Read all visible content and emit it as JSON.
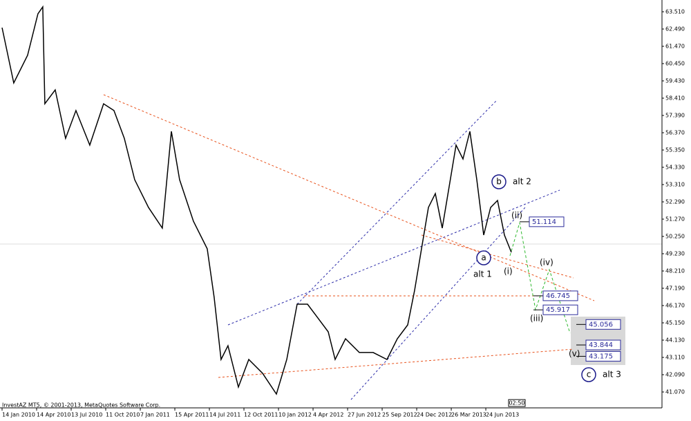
{
  "chart_data": {
    "type": "line",
    "footer": "InvestAZ MT5, © 2001-2013, MetaQuotes Software Corp.",
    "time_label": "02:50",
    "x": [
      0,
      4.4,
      9.6,
      13.5,
      15.3,
      16.1,
      20.0,
      23.9,
      27.8,
      33.0,
      38.2,
      42.1,
      46.0,
      49.9,
      55.1,
      60.3,
      63.7,
      66.8,
      72.0,
      77.2,
      79.8,
      82.4,
      85.0,
      88.9,
      92.8,
      98.0,
      103.2,
      107.1,
      111.0,
      114.9,
      118.8,
      122.7,
      125.3,
      129.2,
      134.4,
      139.6,
      144.8,
      148.7,
      152.6,
      155.2,
      157.8,
      160.4,
      163.0,
      165.6,
      168.2,
      170.8,
      173.4,
      176.0,
      178.6,
      181.2,
      183.8,
      186.4,
      189.0,
      191.6
    ],
    "series": [
      {
        "color": "#000000",
        "values": [
          62.57,
          59.31,
          60.94,
          63.39,
          63.8,
          58.08,
          58.9,
          56.04,
          57.68,
          55.64,
          58.08,
          57.68,
          56.04,
          53.6,
          51.96,
          50.74,
          56.45,
          53.6,
          51.15,
          49.52,
          46.66,
          42.99,
          43.8,
          41.36,
          42.99,
          42.17,
          40.95,
          42.99,
          46.25,
          46.25,
          45.44,
          44.62,
          42.99,
          44.21,
          43.4,
          43.4,
          42.99,
          44.21,
          45.03,
          47.07,
          49.52,
          51.96,
          52.78,
          50.74,
          53.19,
          55.64,
          54.82,
          56.45,
          53.6,
          50.33,
          51.96,
          52.37,
          50.33,
          49.31
        ]
      }
    ],
    "xlim": [
      -0.78,
      248.8
    ],
    "xticks": [
      {
        "value": 0,
        "label": "14 Jan 2010"
      },
      {
        "value": 13,
        "label": "14 Apr 2010"
      },
      {
        "value": 26,
        "label": "13 Jul 2010"
      },
      {
        "value": 39,
        "label": "11 Oct 2010"
      },
      {
        "value": 52,
        "label": "7 Jan 2011"
      },
      {
        "value": 65,
        "label": "15 Apr 2011"
      },
      {
        "value": 78,
        "label": "14 Jul 2011"
      },
      {
        "value": 91,
        "label": "12 Oct 2011"
      },
      {
        "value": 104,
        "label": "10 Jan 2012"
      },
      {
        "value": 117,
        "label": "4 Apr 2012"
      },
      {
        "value": 130,
        "label": "27 Jun 2012"
      },
      {
        "value": 143,
        "label": "25 Sep 2012"
      },
      {
        "value": 156,
        "label": "24 Dec 2012"
      },
      {
        "value": 169,
        "label": "26 Mar 2013"
      },
      {
        "value": 182,
        "label": "24 Jun 2013"
      }
    ],
    "ylim": [
      40.132,
      64.204
    ],
    "yticks": [
      {
        "value": 63.51,
        "label": "63.510"
      },
      {
        "value": 62.49,
        "label": "62.490"
      },
      {
        "value": 61.47,
        "label": "61.470"
      },
      {
        "value": 60.45,
        "label": "60.450"
      },
      {
        "value": 59.43,
        "label": "59.430"
      },
      {
        "value": 58.41,
        "label": "58.410"
      },
      {
        "value": 57.39,
        "label": "57.390"
      },
      {
        "value": 56.37,
        "label": "56.370"
      },
      {
        "value": 55.35,
        "label": "55.350"
      },
      {
        "value": 54.33,
        "label": "54.330"
      },
      {
        "value": 53.31,
        "label": "53.310"
      },
      {
        "value": 52.29,
        "label": "52.290"
      },
      {
        "value": 51.27,
        "label": "51.270"
      },
      {
        "value": 50.25,
        "label": "50.250"
      },
      {
        "value": 49.23,
        "label": "49.230"
      },
      {
        "value": 48.21,
        "label": "48.210"
      },
      {
        "value": 47.19,
        "label": "47.190"
      },
      {
        "value": 46.17,
        "label": "46.170"
      },
      {
        "value": 45.15,
        "label": "45.150"
      },
      {
        "value": 44.13,
        "label": "44.130"
      },
      {
        "value": 43.11,
        "label": "43.110"
      },
      {
        "value": 42.09,
        "label": "42.090"
      },
      {
        "value": 41.07,
        "label": "41.070"
      }
    ],
    "levels": [
      51.114,
      46.745,
      45.917,
      45.056,
      43.844,
      43.175
    ],
    "annotations": [
      "b",
      "alt 2",
      "a",
      "alt 1",
      "(i)",
      "(ii)",
      "(iii)",
      "(iv)",
      "(v)",
      "c",
      "alt 3"
    ]
  }
}
